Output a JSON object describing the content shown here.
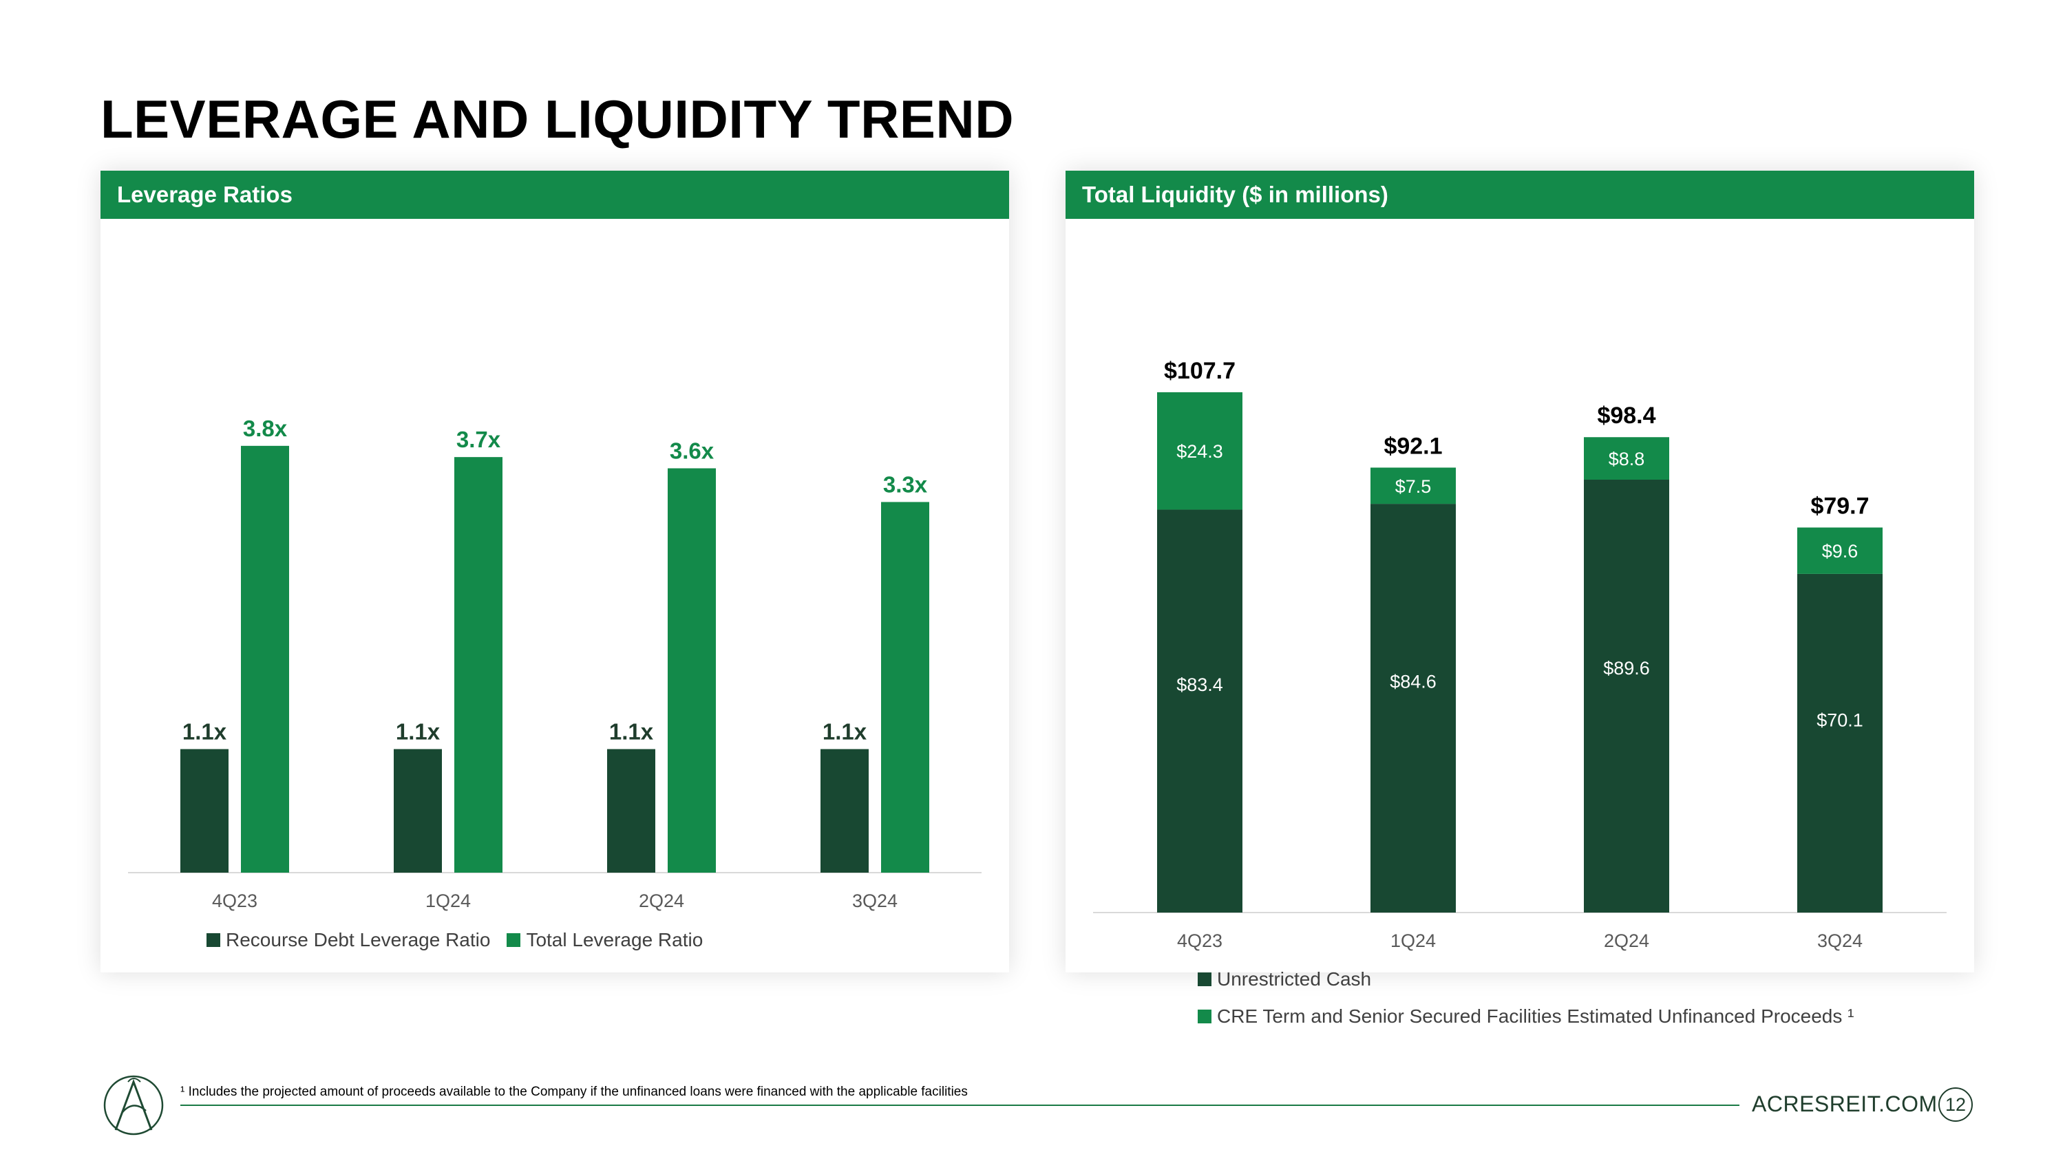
{
  "title": "LEVERAGE AND LIQUIDITY TREND",
  "colors": {
    "dark_green": "#184832",
    "bright_green": "#138a4a",
    "header_green": "#138a4a",
    "axis": "#d9d9d9"
  },
  "left_panel": {
    "header": "Leverage Ratios"
  },
  "right_panel": {
    "header": "Total Liquidity ($ in millions)"
  },
  "chart_data": [
    {
      "type": "bar",
      "title": "Leverage Ratios",
      "categories": [
        "4Q23",
        "1Q24",
        "2Q24",
        "3Q24"
      ],
      "series": [
        {
          "name": "Recourse Debt Leverage Ratio",
          "values": [
            1.1,
            1.1,
            1.1,
            1.1
          ],
          "labels": [
            "1.1x",
            "1.1x",
            "1.1x",
            "1.1x"
          ]
        },
        {
          "name": "Total Leverage Ratio",
          "values": [
            3.8,
            3.7,
            3.6,
            3.3
          ],
          "labels": [
            "3.8x",
            "3.7x",
            "3.6x",
            "3.3x"
          ]
        }
      ],
      "ylim": [
        0,
        4
      ],
      "legend": "bottom"
    },
    {
      "type": "stacked-bar",
      "title": "Total Liquidity ($ in millions)",
      "categories": [
        "4Q23",
        "1Q24",
        "2Q24",
        "3Q24"
      ],
      "series": [
        {
          "name": "Unrestricted Cash",
          "values": [
            83.4,
            84.6,
            89.6,
            70.1
          ],
          "labels": [
            "$83.4",
            "$84.6",
            "$89.6",
            "$70.1"
          ]
        },
        {
          "name": "CRE Term and Senior Secured Facilities Estimated Unfinanced Proceeds ¹",
          "values": [
            24.3,
            7.5,
            8.8,
            9.6
          ],
          "labels": [
            "$24.3",
            "$7.5",
            "$8.8",
            "$9.6"
          ]
        }
      ],
      "totals": [
        "$107.7",
        "$92.1",
        "$98.4",
        "$79.7"
      ],
      "ylim": [
        0,
        115
      ],
      "legend": "bottom"
    }
  ],
  "footnote": "¹ Includes the projected amount of proceeds available to the Company if the unfinanced loans were financed with the applicable facilities",
  "footer": {
    "url": "ACRESREIT.COM",
    "page_number": "12"
  },
  "logo_icon": "acres-logo-icon"
}
